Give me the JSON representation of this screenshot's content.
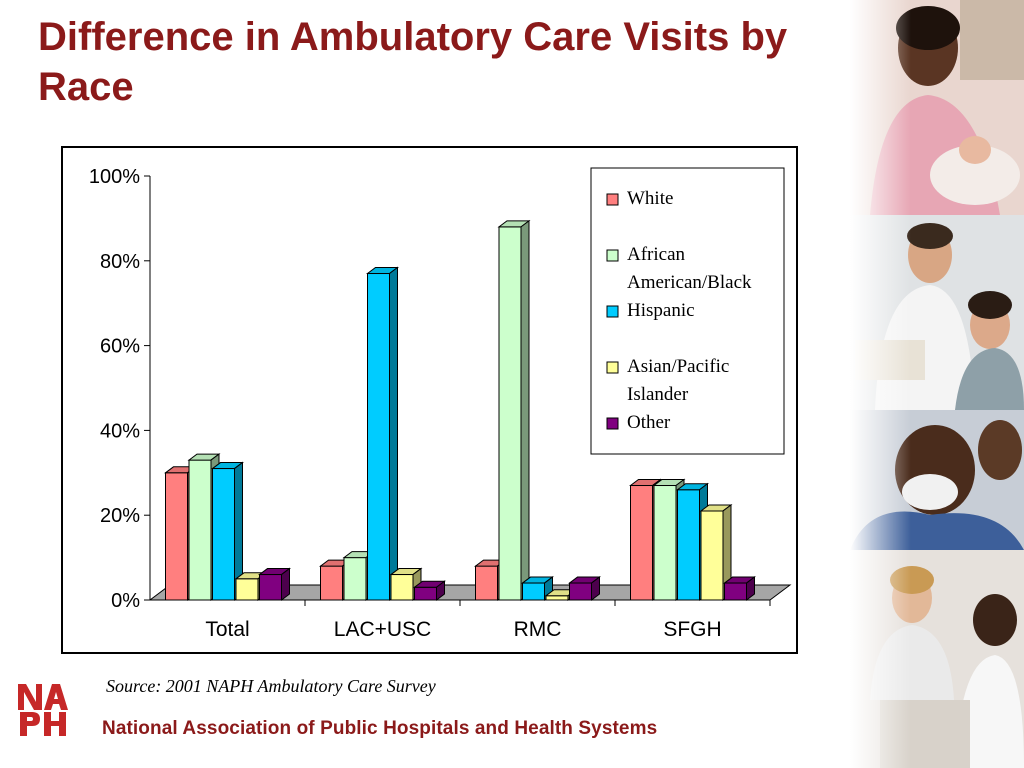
{
  "slide": {
    "title": "Difference in Ambulatory Care Visits by Race",
    "source": "Source: 2001 NAPH Ambulatory Care Survey",
    "org_name": "National Association of Public Hospitals and Health Systems",
    "logo_text": "NAPH"
  },
  "photos": [
    "nurse-with-baby",
    "doctor-with-patients",
    "surgeon-with-mask",
    "doctor-with-patient"
  ],
  "chart_data": {
    "type": "bar",
    "categories": [
      "Total",
      "LAC+USC",
      "RMC",
      "SFGH"
    ],
    "series": [
      {
        "name": "White",
        "color": "#ff7f7f",
        "values": [
          30,
          8,
          8,
          27
        ]
      },
      {
        "name": "African American/Black",
        "color": "#ccffcc",
        "values": [
          33,
          10,
          88,
          27
        ]
      },
      {
        "name": "Hispanic",
        "color": "#00ccff",
        "values": [
          31,
          77,
          4,
          26
        ]
      },
      {
        "name": "Asian/Pacific Islander",
        "color": "#ffff99",
        "values": [
          5,
          6,
          1,
          21
        ]
      },
      {
        "name": "Other",
        "color": "#800080",
        "values": [
          6,
          3,
          4,
          4
        ]
      }
    ],
    "yticks": [
      "0%",
      "20%",
      "40%",
      "60%",
      "80%",
      "100%"
    ],
    "ylim": [
      0,
      100
    ],
    "legend_position": "top-right",
    "grid": false,
    "three_d": true
  }
}
